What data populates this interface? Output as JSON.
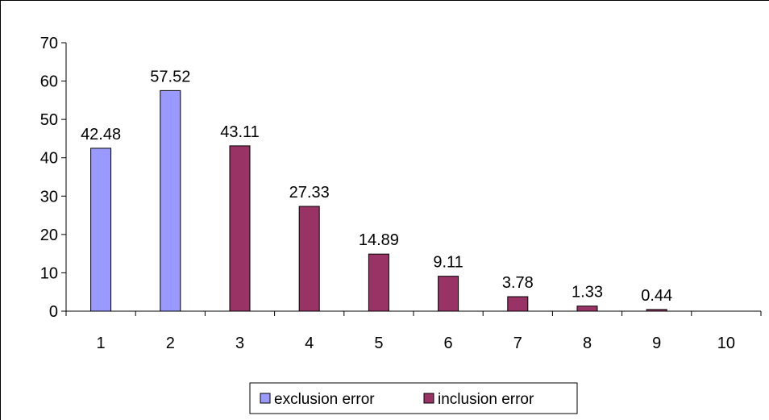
{
  "chart_data": {
    "type": "bar",
    "categories": [
      "1",
      "2",
      "3",
      "4",
      "5",
      "6",
      "7",
      "8",
      "9",
      "10"
    ],
    "series": [
      {
        "name": "exclusion error",
        "color": "#9999ff",
        "values": [
          42.48,
          57.52,
          null,
          null,
          null,
          null,
          null,
          null,
          null,
          null
        ],
        "value_labels": [
          "42.48",
          "57.52",
          null,
          null,
          null,
          null,
          null,
          null,
          null,
          null
        ]
      },
      {
        "name": "inclusion error",
        "color": "#993366",
        "values": [
          null,
          null,
          43.11,
          27.33,
          14.89,
          9.11,
          3.78,
          1.33,
          0.44,
          null
        ],
        "value_labels": [
          null,
          null,
          "43.11",
          "27.33",
          "14.89",
          "9.11",
          "3.78",
          "1.33",
          "0.44",
          null
        ]
      }
    ],
    "title": "",
    "xlabel": "",
    "ylabel": "",
    "ylim": [
      0,
      70
    ],
    "yticks": [
      "0",
      "10",
      "20",
      "30",
      "40",
      "50",
      "60",
      "70"
    ],
    "grid": false,
    "legend_position": "bottom"
  }
}
